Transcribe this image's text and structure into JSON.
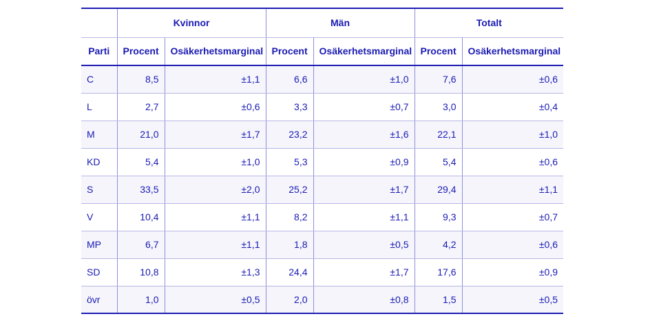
{
  "table": {
    "groups": [
      "Kvinnor",
      "Män",
      "Totalt"
    ],
    "party_header": "Parti",
    "col_percent": "Procent",
    "col_margin": "Osäkerhetsmarginal",
    "rows": [
      {
        "party": "C",
        "k_pct": "8,5",
        "k_ma": "±1,1",
        "m_pct": "6,6",
        "m_ma": "±1,0",
        "t_pct": "7,6",
        "t_ma": "±0,6"
      },
      {
        "party": "L",
        "k_pct": "2,7",
        "k_ma": "±0,6",
        "m_pct": "3,3",
        "m_ma": "±0,7",
        "t_pct": "3,0",
        "t_ma": "±0,4"
      },
      {
        "party": "M",
        "k_pct": "21,0",
        "k_ma": "±1,7",
        "m_pct": "23,2",
        "m_ma": "±1,6",
        "t_pct": "22,1",
        "t_ma": "±1,0"
      },
      {
        "party": "KD",
        "k_pct": "5,4",
        "k_ma": "±1,0",
        "m_pct": "5,3",
        "m_ma": "±0,9",
        "t_pct": "5,4",
        "t_ma": "±0,6"
      },
      {
        "party": "S",
        "k_pct": "33,5",
        "k_ma": "±2,0",
        "m_pct": "25,2",
        "m_ma": "±1,7",
        "t_pct": "29,4",
        "t_ma": "±1,1"
      },
      {
        "party": "V",
        "k_pct": "10,4",
        "k_ma": "±1,1",
        "m_pct": "8,2",
        "m_ma": "±1,1",
        "t_pct": "9,3",
        "t_ma": "±0,7"
      },
      {
        "party": "MP",
        "k_pct": "6,7",
        "k_ma": "±1,1",
        "m_pct": "1,8",
        "m_ma": "±0,5",
        "t_pct": "4,2",
        "t_ma": "±0,6"
      },
      {
        "party": "SD",
        "k_pct": "10,8",
        "k_ma": "±1,3",
        "m_pct": "24,4",
        "m_ma": "±1,7",
        "t_pct": "17,6",
        "t_ma": "±0,9"
      },
      {
        "party": "övr",
        "k_pct": "1,0",
        "k_ma": "±0,5",
        "m_pct": "2,0",
        "m_ma": "±0,8",
        "t_pct": "1,5",
        "t_ma": "±0,5"
      }
    ]
  }
}
